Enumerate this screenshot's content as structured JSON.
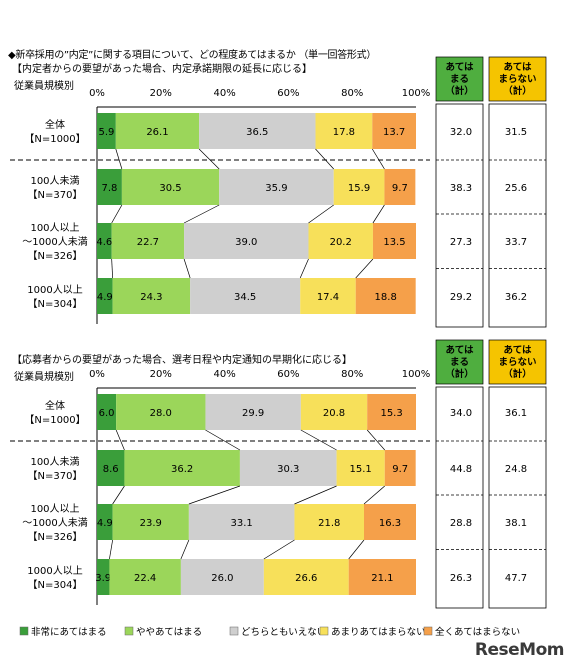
{
  "title": "◆新卒採用の”内定”に関する項目について、どの程度あてはまるか （単一回答形式）",
  "legend": {
    "items": [
      {
        "label": "非常にあてはまる",
        "color": "#3a9e3a"
      },
      {
        "label": "ややあてはまる",
        "color": "#9bd65a"
      },
      {
        "label": "どちらともいえない",
        "color": "#cfcfcf"
      },
      {
        "label": "あまりあてはまらない",
        "color": "#f7e05a"
      },
      {
        "label": "全くあてはまらない",
        "color": "#f5a04a"
      }
    ]
  },
  "header_labels": {
    "applies": "あてはまる（計）",
    "not_applies": "あてはまらない（計）"
  },
  "watermark": "ReseMom",
  "chart_data": [
    {
      "type": "bar",
      "subtitle": "【内定者からの要望があった場合、内定承諾期限の延長に応じる】",
      "group_label": "従業員規模別",
      "ticks": [
        "0%",
        "20%",
        "40%",
        "60%",
        "80%",
        "100%"
      ],
      "categories": [
        [
          "全体",
          "【N=1000】"
        ],
        [
          "100人未満",
          "【N=370】"
        ],
        [
          "100人以上",
          "～1000人未満",
          "【N=326】"
        ],
        [
          "1000人以上",
          "【N=304】"
        ]
      ],
      "series": [
        {
          "name": "非常にあてはまる",
          "values": [
            5.9,
            7.8,
            4.6,
            4.9
          ]
        },
        {
          "name": "ややあてはまる",
          "values": [
            26.1,
            30.5,
            22.7,
            24.3
          ]
        },
        {
          "name": "どちらともいえない",
          "values": [
            36.5,
            35.9,
            39.0,
            34.5
          ]
        },
        {
          "name": "あまりあてはまらない",
          "values": [
            17.8,
            15.9,
            20.2,
            17.4
          ]
        },
        {
          "name": "全くあてはまらない",
          "values": [
            13.7,
            9.7,
            13.5,
            18.8
          ]
        }
      ],
      "applies_total": [
        32.0,
        38.3,
        27.3,
        29.2
      ],
      "not_applies_total": [
        31.5,
        25.6,
        33.7,
        36.2
      ]
    },
    {
      "type": "bar",
      "subtitle": "【応募者からの要望があった場合、選考日程や内定通知の早期化に応じる】",
      "group_label": "従業員規模別",
      "ticks": [
        "0%",
        "20%",
        "40%",
        "60%",
        "80%",
        "100%"
      ],
      "categories": [
        [
          "全体",
          "【N=1000】"
        ],
        [
          "100人未満",
          "【N=370】"
        ],
        [
          "100人以上",
          "～1000人未満",
          "【N=326】"
        ],
        [
          "1000人以上",
          "【N=304】"
        ]
      ],
      "series": [
        {
          "name": "非常にあてはまる",
          "values": [
            6.0,
            8.6,
            4.9,
            3.9
          ]
        },
        {
          "name": "ややあてはまる",
          "values": [
            28.0,
            36.2,
            23.9,
            22.4
          ]
        },
        {
          "name": "どちらともいえない",
          "values": [
            29.9,
            30.3,
            33.1,
            26.0
          ]
        },
        {
          "name": "あまりあてはまらない",
          "values": [
            20.8,
            15.1,
            21.8,
            26.6
          ]
        },
        {
          "name": "全くあてはまらない",
          "values": [
            15.3,
            9.7,
            16.3,
            21.1
          ]
        }
      ],
      "applies_total": [
        34.0,
        44.8,
        28.8,
        26.3
      ],
      "not_applies_total": [
        36.1,
        24.8,
        38.1,
        47.7
      ]
    }
  ]
}
